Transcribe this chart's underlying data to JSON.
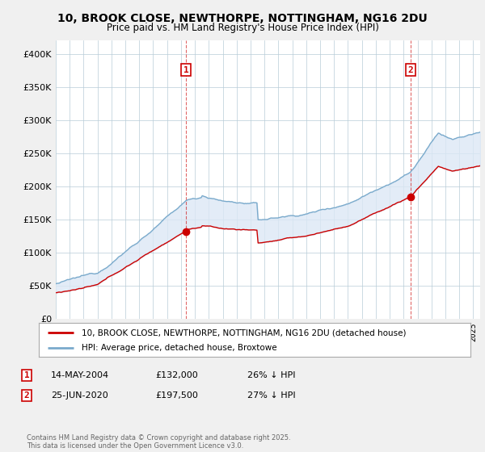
{
  "title": "10, BROOK CLOSE, NEWTHORPE, NOTTINGHAM, NG16 2DU",
  "subtitle": "Price paid vs. HM Land Registry's House Price Index (HPI)",
  "title_fontsize": 10,
  "subtitle_fontsize": 8.5,
  "bg_color": "#f0f0f0",
  "plot_bg_color": "#ffffff",
  "red_color": "#cc0000",
  "blue_color": "#7aaacc",
  "fill_color": "#dce8f5",
  "marker1_x": 2004.37,
  "marker1_y": 132000,
  "marker2_x": 2020.49,
  "marker2_y": 197500,
  "ylim": [
    0,
    420000
  ],
  "yticks": [
    0,
    50000,
    100000,
    150000,
    200000,
    250000,
    300000,
    350000,
    400000
  ],
  "legend_label_red": "10, BROOK CLOSE, NEWTHORPE, NOTTINGHAM, NG16 2DU (detached house)",
  "legend_label_blue": "HPI: Average price, detached house, Broxtowe",
  "annotation1_date": "14-MAY-2004",
  "annotation1_price": "£132,000",
  "annotation1_hpi": "26% ↓ HPI",
  "annotation2_date": "25-JUN-2020",
  "annotation2_price": "£197,500",
  "annotation2_hpi": "27% ↓ HPI",
  "footer": "Contains HM Land Registry data © Crown copyright and database right 2025.\nThis data is licensed under the Open Government Licence v3.0.",
  "xmin": 1995.0,
  "xmax": 2025.5
}
